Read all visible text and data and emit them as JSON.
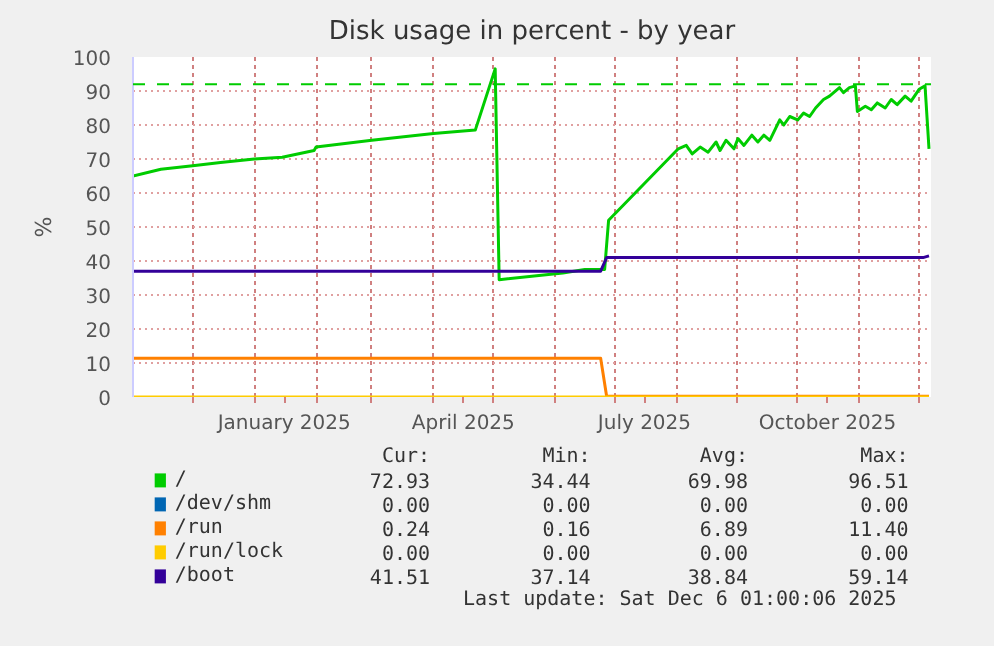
{
  "chart_data": {
    "type": "line",
    "title": "Disk usage in percent - by year",
    "ylabel": "%",
    "xlim": [
      "2024-11-01",
      "2025-12-07"
    ],
    "ylim": [
      0,
      100
    ],
    "yticks": [
      0,
      10,
      20,
      30,
      40,
      50,
      60,
      70,
      80,
      90,
      100
    ],
    "xticks": [
      {
        "value": "2024-12-01",
        "label": null
      },
      {
        "value": "2025-01-01",
        "label": null
      },
      {
        "value": "2025-01-16",
        "label": "January 2025"
      },
      {
        "value": "2025-02-01",
        "label": null
      },
      {
        "value": "2025-03-01",
        "label": null
      },
      {
        "value": "2025-04-01",
        "label": null
      },
      {
        "value": "2025-04-16",
        "label": "April 2025"
      },
      {
        "value": "2025-05-01",
        "label": null
      },
      {
        "value": "2025-06-01",
        "label": null
      },
      {
        "value": "2025-07-01",
        "label": null
      },
      {
        "value": "2025-07-16",
        "label": "July 2025"
      },
      {
        "value": "2025-08-01",
        "label": null
      },
      {
        "value": "2025-09-01",
        "label": null
      },
      {
        "value": "2025-10-01",
        "label": null
      },
      {
        "value": "2025-10-16",
        "label": "October 2025"
      },
      {
        "value": "2025-11-01",
        "label": null
      },
      {
        "value": "2025-12-01",
        "label": null
      }
    ],
    "grid": true,
    "legend": "bottom",
    "line_style": "solid",
    "ref_lines": [
      {
        "axis": "y",
        "value": 92,
        "color": "#00cc00",
        "line_style": "dashed"
      }
    ],
    "series": [
      {
        "name": "/",
        "color": "#00cc00",
        "x": [
          "2024-11-01",
          "2024-11-15",
          "2024-12-01",
          "2024-12-15",
          "2025-01-01",
          "2025-01-15",
          "2025-01-31",
          "2025-02-01",
          "2025-03-01",
          "2025-04-01",
          "2025-04-22",
          "2025-05-02",
          "2025-05-04",
          "2025-06-05",
          "2025-06-16",
          "2025-06-26",
          "2025-06-28",
          "2025-08-02",
          "2025-08-06",
          "2025-08-09",
          "2025-08-13",
          "2025-08-17",
          "2025-08-21",
          "2025-08-23",
          "2025-08-26",
          "2025-08-30",
          "2025-09-01",
          "2025-09-04",
          "2025-09-08",
          "2025-09-11",
          "2025-09-14",
          "2025-09-17",
          "2025-09-22",
          "2025-09-24",
          "2025-09-27",
          "2025-10-01",
          "2025-10-04",
          "2025-10-07",
          "2025-10-10",
          "2025-10-14",
          "2025-10-17",
          "2025-10-22",
          "2025-10-24",
          "2025-10-27",
          "2025-10-30",
          "2025-10-31",
          "2025-11-04",
          "2025-11-07",
          "2025-11-10",
          "2025-11-14",
          "2025-11-17",
          "2025-11-20",
          "2025-11-24",
          "2025-11-27",
          "2025-12-01",
          "2025-12-04",
          "2025-12-06"
        ],
        "values": [
          65,
          67,
          68,
          69,
          70,
          70.5,
          72.5,
          73.5,
          75.5,
          77.5,
          78.5,
          96.5,
          34.5,
          36.5,
          37.5,
          37.5,
          52,
          73,
          74,
          71.5,
          73.5,
          72,
          75,
          72.5,
          75.5,
          73,
          76,
          74,
          77,
          75,
          77,
          75.5,
          81.5,
          80,
          82.5,
          81.5,
          83.5,
          82.5,
          85,
          87.5,
          88.5,
          91,
          89.5,
          91,
          91.5,
          84,
          85.5,
          84.5,
          86.5,
          85,
          87.5,
          86,
          88.5,
          87,
          90.5,
          91.5,
          73
        ]
      },
      {
        "name": "/dev/shm",
        "color": "#0066b3"
      },
      {
        "name": "/run",
        "color": "#ff8000",
        "x": [
          "2024-11-01",
          "2025-06-24",
          "2025-06-27",
          "2025-12-06"
        ],
        "values": [
          11.4,
          11.4,
          0.2,
          0.2
        ]
      },
      {
        "name": "/run/lock",
        "color": "#ffcc00",
        "x": [
          "2024-11-01",
          "2025-12-06"
        ],
        "values": [
          0,
          0
        ]
      },
      {
        "name": "/boot",
        "color": "#330099",
        "x": [
          "2024-11-01",
          "2025-06-24",
          "2025-06-27",
          "2025-12-03",
          "2025-12-06"
        ],
        "values": [
          37,
          37,
          41,
          41,
          41.5
        ]
      }
    ],
    "annotations": [
      "Cur:",
      "Min:",
      "Avg:",
      "Max:",
      "72.93",
      "34.44",
      "69.98",
      "96.51",
      "0.00",
      "0.00",
      "0.00",
      "0.00",
      "0.24",
      "0.16",
      "6.89",
      "11.40",
      "0.00",
      "0.00",
      "0.00",
      "0.00",
      "41.51",
      "37.14",
      "38.84",
      "59.14",
      "Last update: Sat Dec  6 01:00:06 2025"
    ]
  }
}
